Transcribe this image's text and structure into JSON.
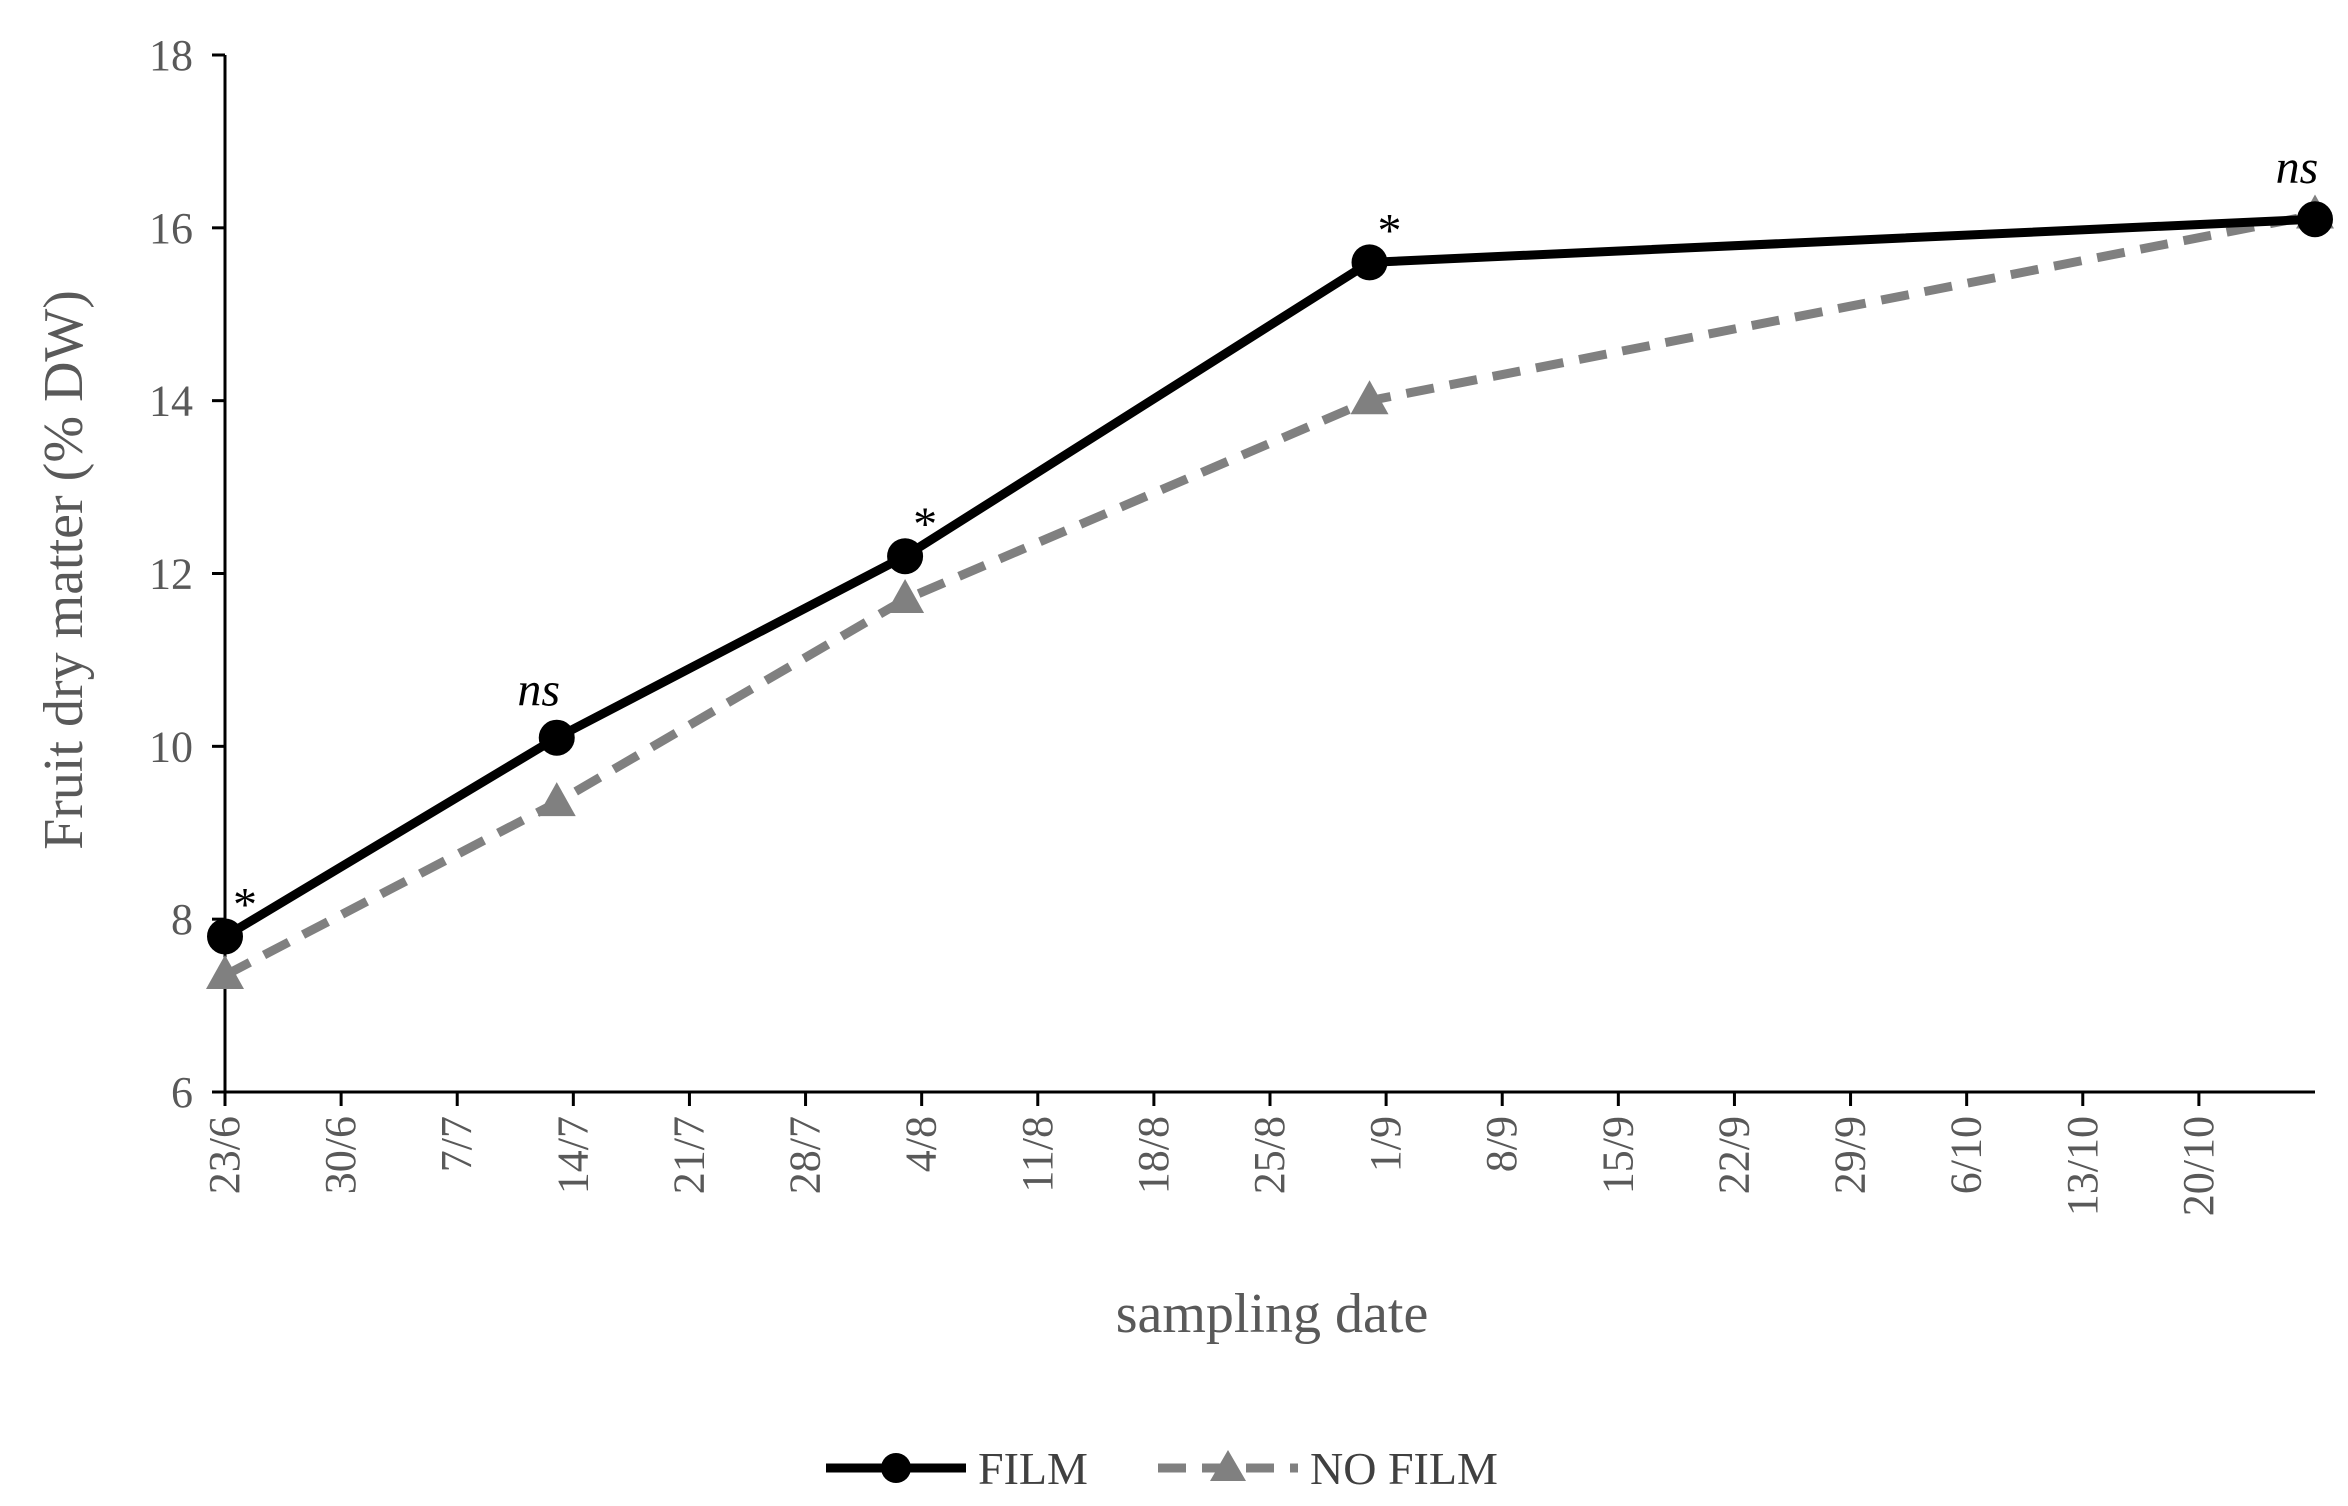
{
  "chart_data": {
    "type": "line",
    "title": "",
    "xlabel": "sampling date",
    "ylabel": "Fruit dry matter (%  DW)",
    "ylim": [
      6,
      18
    ],
    "yticks": [
      "6",
      "8",
      "10",
      "12",
      "14",
      "16",
      "18"
    ],
    "xticks": [
      "23/6",
      "30/6",
      "7/7",
      "14/7",
      "21/7",
      "28/7",
      "4/8",
      "11/8",
      "18/8",
      "25/8",
      "1/9",
      "8/9",
      "15/9",
      "22/9",
      "29/9",
      "6/10",
      "13/10",
      "20/10"
    ],
    "xlim": [
      "23/6",
      "27/10"
    ],
    "grid": false,
    "legend_position": "bottom",
    "series": [
      {
        "name": "FILM",
        "color": "#000000",
        "marker": "circle",
        "line_style": "solid",
        "x": [
          "23/6",
          "13/7",
          "3/8",
          "31/8",
          "27/10"
        ],
        "y": [
          7.8,
          10.1,
          12.2,
          15.6,
          16.1
        ]
      },
      {
        "name": "NO FILM",
        "color": "#808080",
        "marker": "triangle",
        "line_style": "dashed",
        "x": [
          "23/6",
          "13/7",
          "3/8",
          "31/8",
          "27/10"
        ],
        "y": [
          7.35,
          9.35,
          11.7,
          14.0,
          16.15
        ]
      }
    ],
    "annotations": [
      {
        "text": "*",
        "x": "23/6",
        "italic": false
      },
      {
        "text": "ns",
        "x": "13/7",
        "italic": true
      },
      {
        "text": "*",
        "x": "3/8",
        "italic": false
      },
      {
        "text": "*",
        "x": "31/8",
        "italic": false
      },
      {
        "text": "ns",
        "x": "27/10",
        "italic": true
      }
    ]
  }
}
